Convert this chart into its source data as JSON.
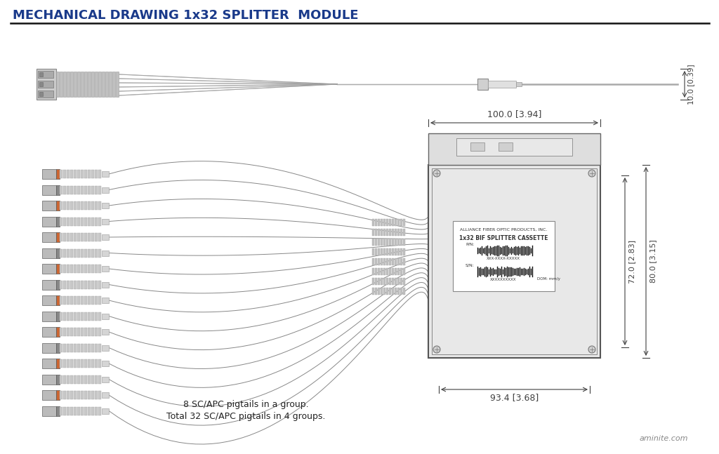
{
  "title": "MECHANICAL DRAWING 1x32 SPLITTER  MODULE",
  "title_color": "#1a3a8a",
  "title_fontsize": 13,
  "bg_color": "#ffffff",
  "dim_color": "#404040",
  "line_color": "#555555",
  "body_color": "#d8d8d8",
  "body_edge": "#888888",
  "annotation_text1": "8 SC/APC pigtails in a group.",
  "annotation_text2": "Total 32 SC/APC pigtails in 4 groups.",
  "watermark": "aminite.com",
  "dim_top": "10.0 [0.39]",
  "dim_width1": "100.0 [3.94]",
  "dim_width2": "93.4 [3.68]",
  "dim_height1": "72.0 [2.83]",
  "dim_height2": "80.0 [3.15]",
  "label_pin": "P/N:",
  "label_sn": "S/N:",
  "label_company": "ALLIANCE FIBER OPTIC PRODUCTS, INC.",
  "label_product": "1x32 BIF SPLITTER CASSETTE",
  "label_pn_val": "XXX-XXXX-XXXXX",
  "label_sn_val": "XXXXXXXXXX",
  "label_dom": "DOM: mm/y"
}
